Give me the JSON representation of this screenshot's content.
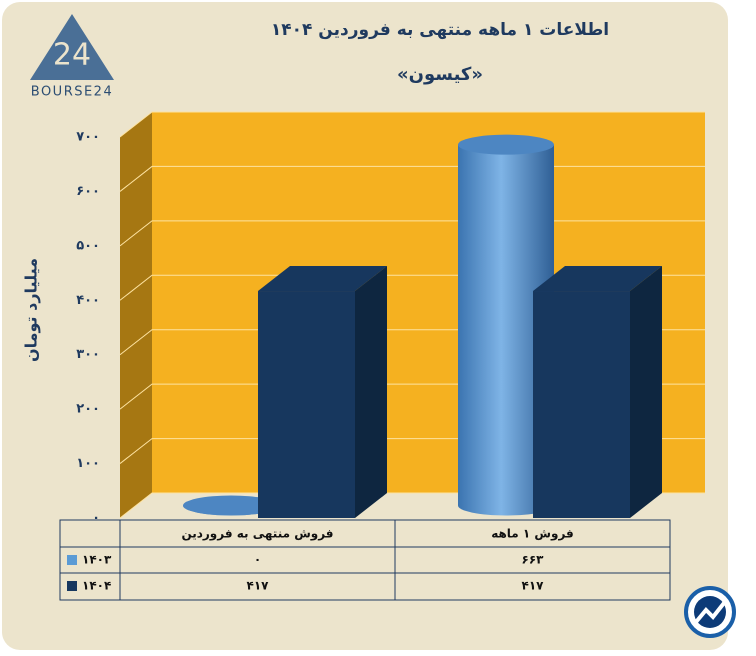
{
  "logo": {
    "mark": "24",
    "text": "BOURSE24"
  },
  "chart_data": {
    "type": "bar3d",
    "title": "اطلاعات ۱ ماهه منتهی به فروردین ۱۴۰۴",
    "subtitle": "«کیسون»",
    "y_label": "میلیارد تومان",
    "categories": [
      "فروش منتهی به  فروردین",
      "فروش ۱ ماهه"
    ],
    "series": [
      {
        "name": "۱۴۰۳",
        "color": "#5b9bd5",
        "shape": "cylinder",
        "values": [
          0,
          663
        ],
        "value_labels": [
          "۰",
          "۶۶۳"
        ]
      },
      {
        "name": "۱۴۰۴",
        "color": "#17375e",
        "shape": "box",
        "values": [
          417,
          417
        ],
        "value_labels": [
          "۴۱۷",
          "۴۱۷"
        ]
      }
    ],
    "ylim": [
      0,
      700
    ],
    "yticks": [
      {
        "value": 0,
        "label": "۰"
      },
      {
        "value": 100,
        "label": "۱۰۰"
      },
      {
        "value": 200,
        "label": "۲۰۰"
      },
      {
        "value": 300,
        "label": "۳۰۰"
      },
      {
        "value": 400,
        "label": "۴۰۰"
      },
      {
        "value": 500,
        "label": "۵۰۰"
      },
      {
        "value": 600,
        "label": "۶۰۰"
      },
      {
        "value": 700,
        "label": "۷۰۰"
      }
    ],
    "grid": true
  }
}
